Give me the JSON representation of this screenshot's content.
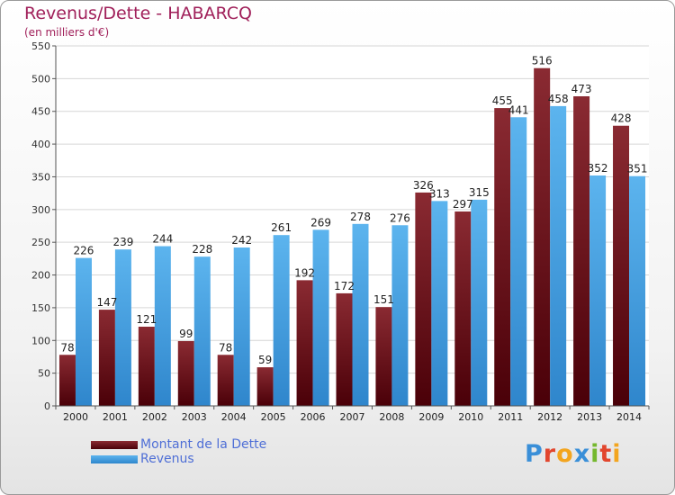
{
  "header": {
    "title": "Revenus/Dette - HABARCQ",
    "subtitle": "(en milliers d'€)"
  },
  "brand": {
    "text": "Proxiti",
    "icon": "proxiti-logo"
  },
  "colors": {
    "dette": "#6e1019",
    "revenus": "#3f9fe0",
    "title": "#a0205a",
    "legend_text": "#4f6fd6"
  },
  "chart_data": {
    "type": "bar",
    "title": "Revenus/Dette - HABARCQ",
    "subtitle": "(en milliers d'€)",
    "xlabel": "",
    "ylabel": "",
    "categories": [
      "2000",
      "2001",
      "2002",
      "2003",
      "2004",
      "2005",
      "2006",
      "2007",
      "2008",
      "2009",
      "2010",
      "2011",
      "2012",
      "2013",
      "2014"
    ],
    "series": [
      {
        "name": "Montant de la Dette",
        "values": [
          78,
          147,
          121,
          99,
          78,
          59,
          192,
          172,
          151,
          326,
          297,
          455,
          516,
          473,
          428
        ]
      },
      {
        "name": "Revenus",
        "values": [
          226,
          239,
          244,
          228,
          242,
          261,
          269,
          278,
          276,
          313,
          315,
          441,
          458,
          352,
          351
        ]
      }
    ],
    "ylim": [
      0,
      550
    ],
    "yticks": [
      0,
      50,
      100,
      150,
      200,
      250,
      300,
      350,
      400,
      450,
      500,
      550
    ],
    "grid": true,
    "legend": "bottom-left"
  }
}
